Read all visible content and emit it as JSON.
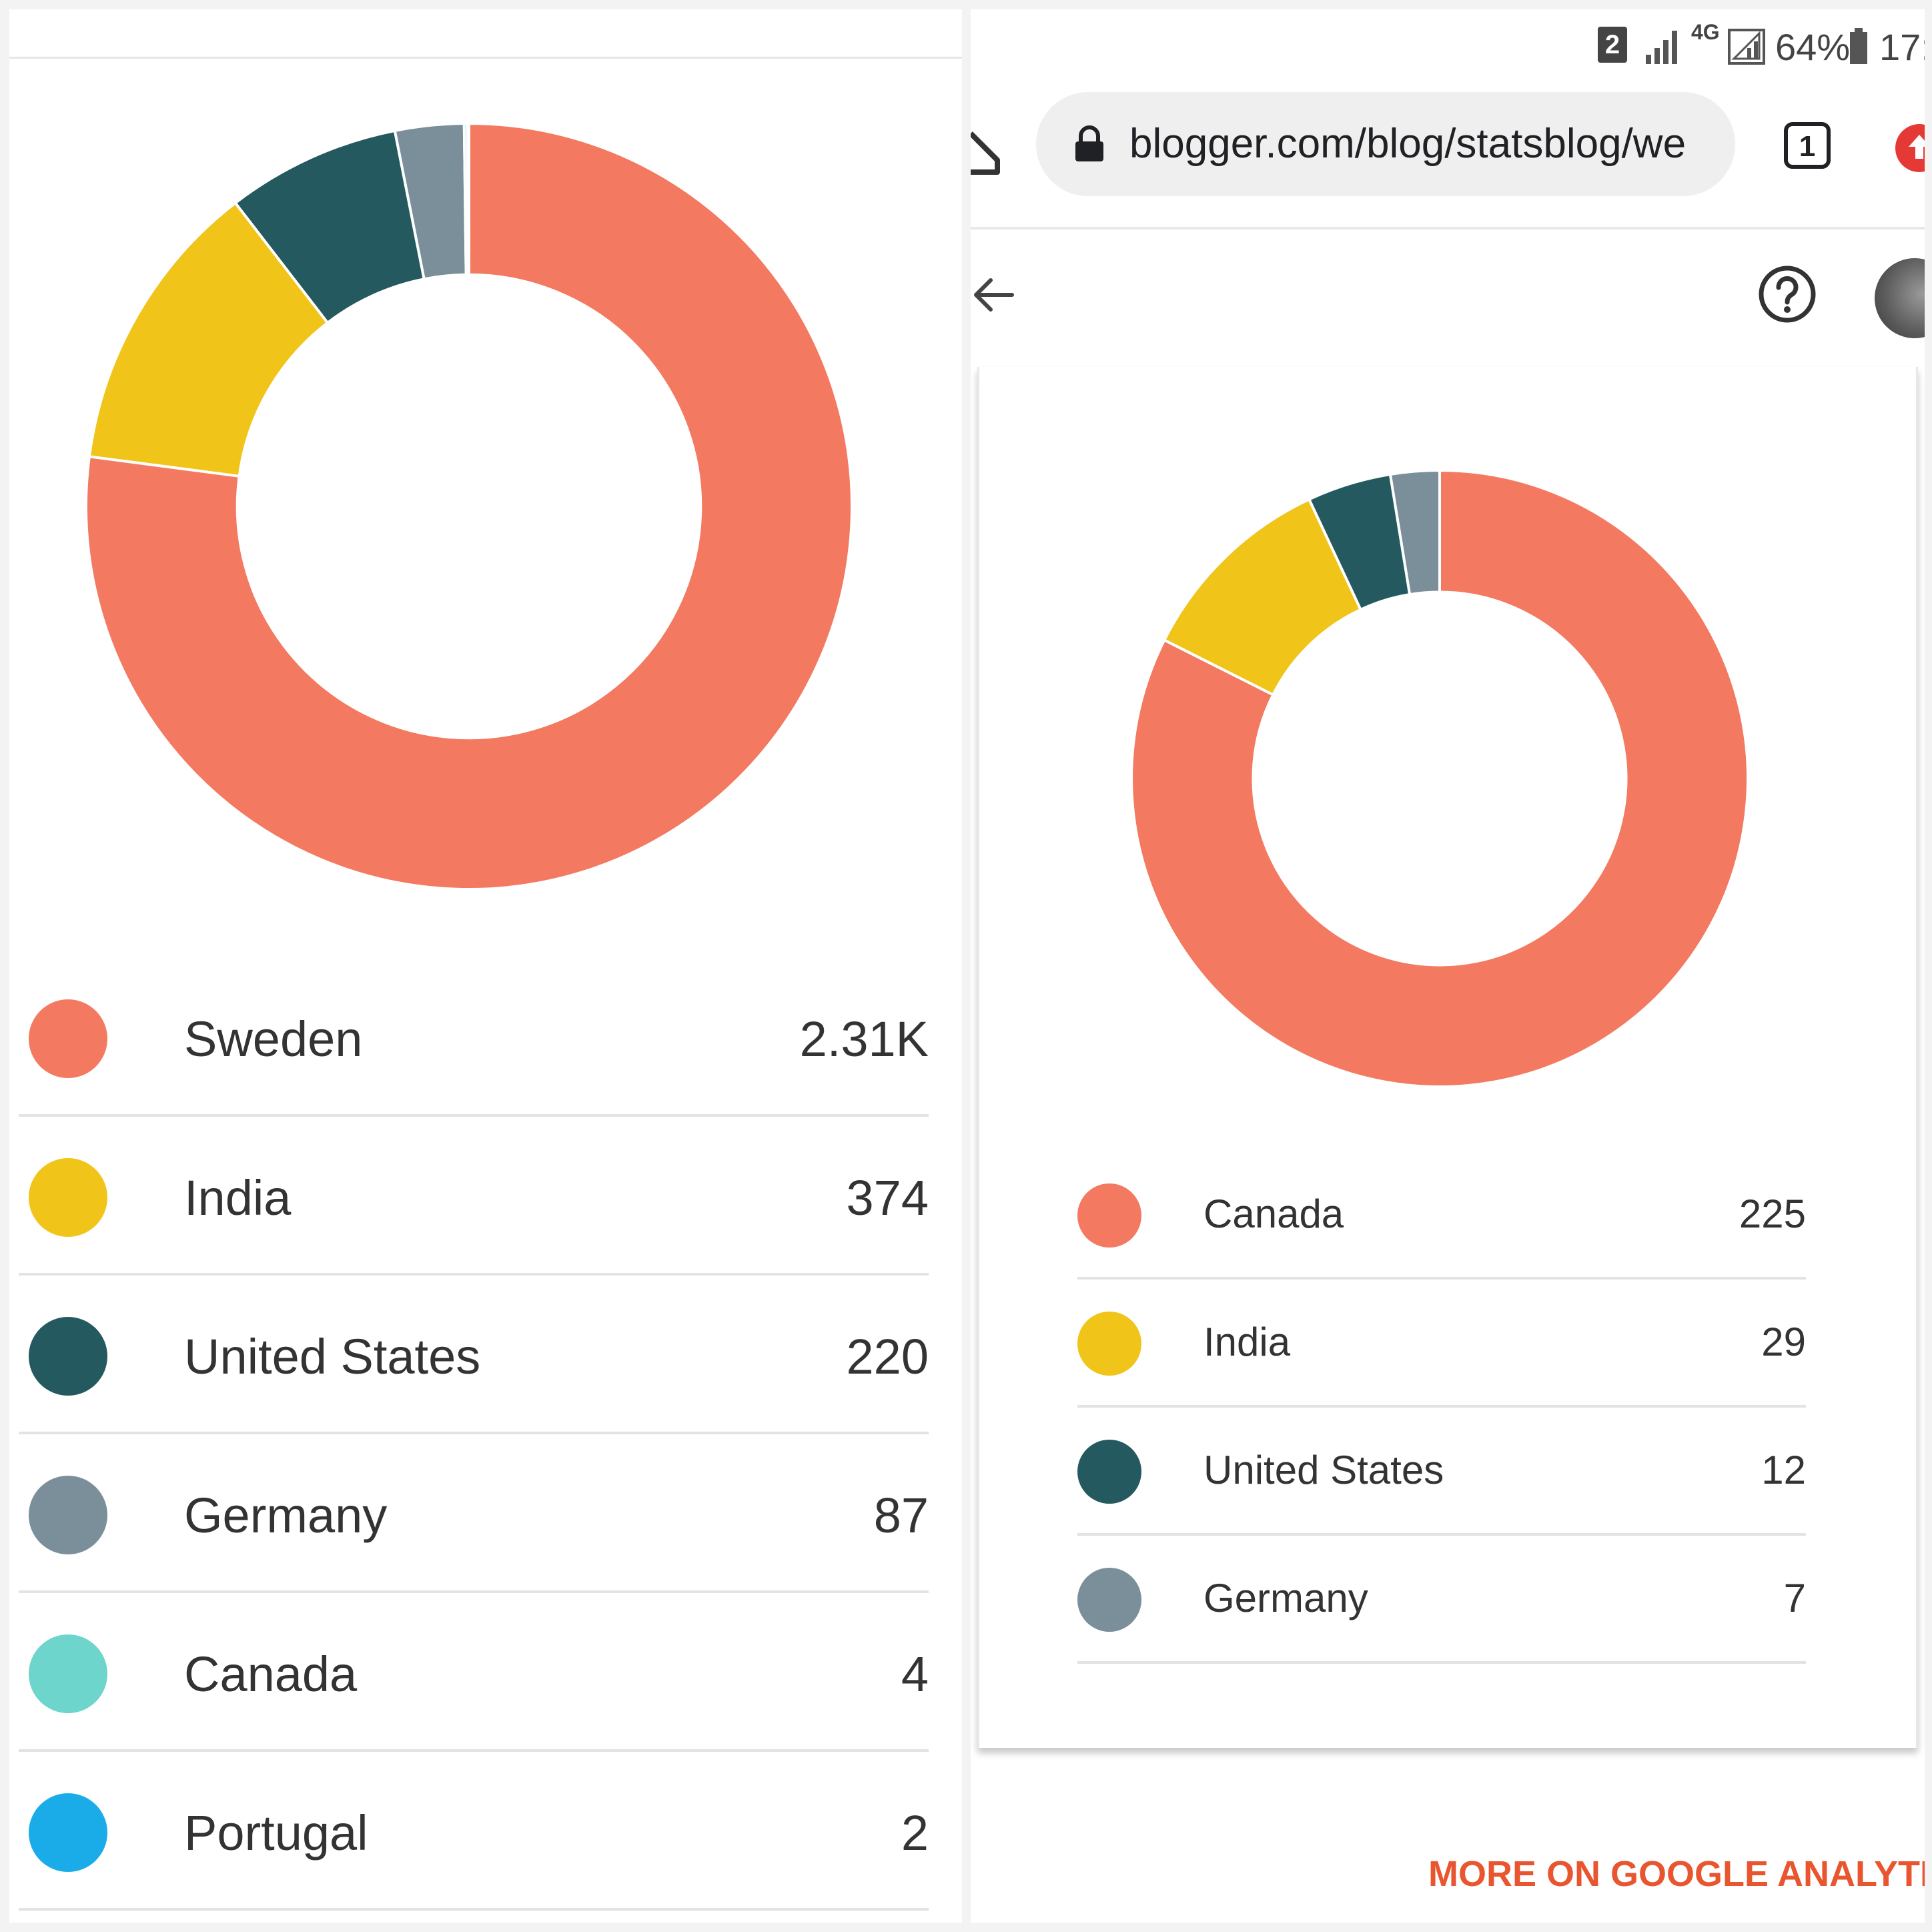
{
  "left_chart": {
    "chart_data": {
      "type": "pie",
      "title": "",
      "categories": [
        "Sweden",
        "India",
        "United States",
        "Germany",
        "Canada",
        "Portugal"
      ],
      "values": [
        2310,
        374,
        220,
        87,
        4,
        2
      ],
      "display_values": [
        "2.31K",
        "374",
        "220",
        "87",
        "4",
        "2"
      ],
      "colors": [
        "#f37a61",
        "#f0c419",
        "#245a5f",
        "#7a8f9a",
        "#6dd5cc",
        "#1aace8"
      ],
      "donut": true,
      "legend": "bottom"
    }
  },
  "status_bar": {
    "sim": "2",
    "network": "4G",
    "battery": "64%",
    "clock": "17:"
  },
  "browser": {
    "url": "blogger.com/blog/statsblog/we",
    "tab_count": "1"
  },
  "right_chart": {
    "chart_data": {
      "type": "pie",
      "title": "",
      "categories": [
        "Canada",
        "India",
        "United States",
        "Germany"
      ],
      "values": [
        225,
        29,
        12,
        7
      ],
      "display_values": [
        "225",
        "29",
        "12",
        "7"
      ],
      "colors": [
        "#f37a61",
        "#f0c419",
        "#245a5f",
        "#7a8f9a"
      ],
      "donut": true,
      "legend": "bottom"
    },
    "link_label": "MORE ON GOOGLE ANALYTICS"
  },
  "icons": {
    "home": "home-icon",
    "lock": "lock-icon",
    "tabs": "tabs-icon",
    "menu": "update-icon",
    "back": "back-arrow-icon",
    "help": "help-icon"
  }
}
